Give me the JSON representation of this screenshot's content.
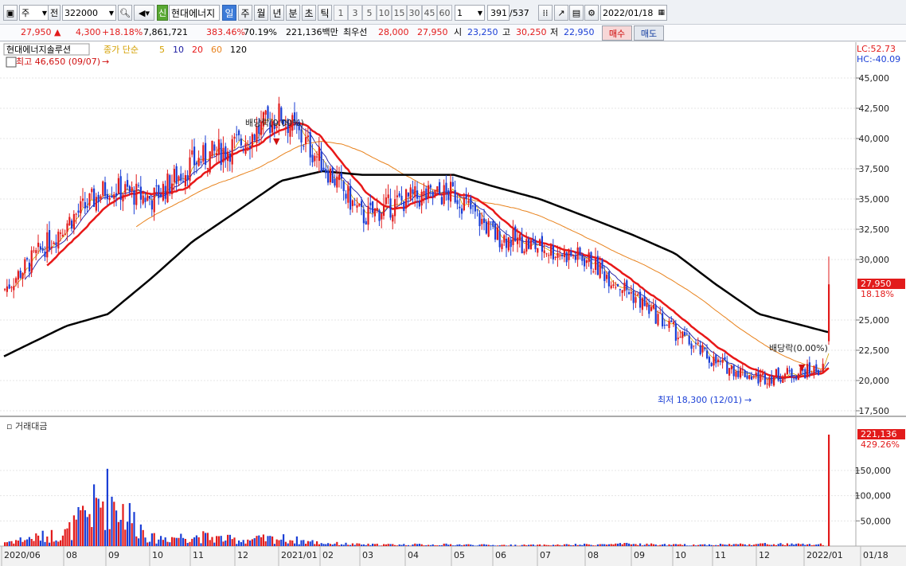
{
  "toolbar": {
    "market": "주",
    "mode": "전",
    "code": "322000",
    "new_badge": "신",
    "name": "현대에너지",
    "periods": [
      "일",
      "주",
      "월",
      "년",
      "분",
      "초",
      "틱"
    ],
    "active_period": "일",
    "intervals": [
      "1",
      "3",
      "5",
      "10",
      "15",
      "30",
      "45",
      "60"
    ],
    "interval_select": "1",
    "count": "391",
    "count_total": "/537",
    "date": "2022/01/18"
  },
  "ticker": {
    "price": "27,950",
    "change": "4,300",
    "change_pct": "+18.18%",
    "volume": "7,861,721",
    "volume_ratio": "383.46%",
    "turnover": "70.19%",
    "amount": "221,136백만",
    "best_label": "최우선",
    "ask": "28,000",
    "bid": "27,950",
    "open_label": "시",
    "open": "23,250",
    "high_label": "고",
    "high": "30,250",
    "low_label": "저",
    "low": "22,950",
    "buy_label": "매수",
    "sell_label": "매도"
  },
  "colors": {
    "up": "#e21b1b",
    "down": "#1b3fd6",
    "ma5": "#1a1aa0",
    "ma10": "#1a1aa0",
    "ma20": "#e81818",
    "ma60": "#e8821c",
    "ma120": "#000000"
  },
  "price_panel": {
    "stock_name": "현대에너지솔루션",
    "legend_prefix": "종가 단순",
    "legend_items": [
      {
        "label": "5",
        "color": "#d4a000"
      },
      {
        "label": "10",
        "color": "#1a1aa0"
      },
      {
        "label": "20",
        "color": "#e81818"
      },
      {
        "label": "60",
        "color": "#e8821c"
      },
      {
        "label": "120",
        "color": "#000000"
      }
    ],
    "high_marker": "최고 46,650 (09/07)",
    "low_marker": "최저 18,300 (12/01)",
    "dividend_labels": [
      "배당락(0.00%)",
      "배당락(0.00%)"
    ],
    "lc": "LC:52.73",
    "hc": "HC:-40.09",
    "current_price_tag": "27,950",
    "current_pct_tag": "18.18%",
    "y_ticks": [
      "45,000",
      "42,500",
      "40,000",
      "37,500",
      "35,000",
      "32,500",
      "30,000",
      "25,000",
      "22,500",
      "20,000",
      "17,500"
    ]
  },
  "volume_panel": {
    "title": "거래대금",
    "value_tag": "221,136",
    "pct_tag": "429.26%",
    "y_ticks": [
      "150,000",
      "100,000",
      "50,000"
    ]
  },
  "x_axis": [
    "2020/06",
    "08",
    "09",
    "10",
    "11",
    "12",
    "2021/01",
    "02",
    "03",
    "04",
    "05",
    "06",
    "07",
    "08",
    "09",
    "10",
    "11",
    "12",
    "2022/01",
    "01/18"
  ],
  "chart_data": {
    "type": "candlestick",
    "x": [
      "2020/06",
      "08",
      "09",
      "10",
      "11",
      "12",
      "2021/01",
      "02",
      "03",
      "04",
      "05",
      "06",
      "07",
      "08",
      "09",
      "10",
      "11",
      "12",
      "2022/01"
    ],
    "close_approx": [
      27500,
      33000,
      36000,
      35000,
      38000,
      39500,
      42000,
      38000,
      33500,
      35000,
      35500,
      32000,
      31000,
      30000,
      27000,
      24000,
      21500,
      20200,
      21000
    ],
    "ma120_approx": [
      22000,
      24500,
      25500,
      28500,
      31500,
      34000,
      36500,
      37300,
      37000,
      37000,
      37000,
      36000,
      35000,
      33500,
      32000,
      30500,
      28000,
      25500,
      24000
    ],
    "amount_approx": [
      8000,
      25000,
      100000,
      15000,
      20000,
      12000,
      15000,
      6000,
      3000,
      3000,
      3000,
      2000,
      2000,
      3000,
      4000,
      2500,
      3000,
      4000,
      221136
    ],
    "last": {
      "date": "2022/01/18",
      "open": 23250,
      "high": 30250,
      "low": 22950,
      "close": 27950,
      "change_pct": 18.18
    },
    "ylim": [
      17000,
      46000
    ],
    "series": [
      {
        "name": "5",
        "type": "ma"
      },
      {
        "name": "10",
        "type": "ma"
      },
      {
        "name": "20",
        "type": "ma"
      },
      {
        "name": "60",
        "type": "ma"
      },
      {
        "name": "120",
        "type": "ma"
      }
    ]
  }
}
